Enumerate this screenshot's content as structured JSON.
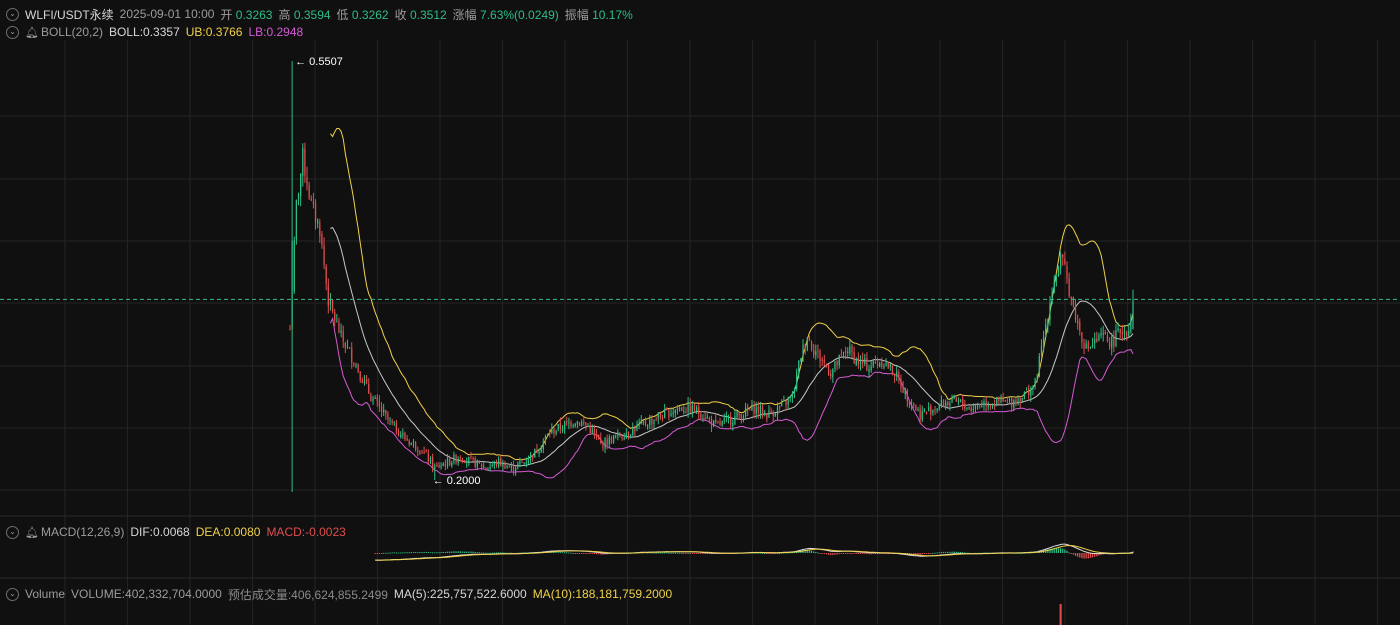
{
  "header": {
    "symbol": "WLFI/USDT永续",
    "datetime": "2025-09-01 10:00",
    "open_label": "开",
    "open": "0.3263",
    "high_label": "高",
    "high": "0.3594",
    "low_label": "低",
    "low": "0.3262",
    "close_label": "收",
    "close": "0.3512",
    "change_label": "涨幅",
    "change": "7.63%(0.0249)",
    "amplitude_label": "振幅",
    "amplitude": "10.17%"
  },
  "boll": {
    "name": "BOLL(20,2)",
    "mid_label": "BOLL:",
    "mid": "0.3357",
    "ub_label": "UB:",
    "ub": "0.3766",
    "lb_label": "LB:",
    "lb": "0.2948"
  },
  "macd": {
    "name": "MACD(12,26,9)",
    "dif_label": "DIF:",
    "dif": "0.0068",
    "dea_label": "DEA:",
    "dea": "0.0080",
    "macd_label": "MACD:",
    "macd": "-0.0023"
  },
  "volume": {
    "name": "Volume",
    "volume_label": "VOLUME:",
    "volume": "402,332,704.0000",
    "est_label": "预估成交量:",
    "est": "406,624,855.2499",
    "ma5_label": "MA(5):",
    "ma5": "225,757,522.6000",
    "ma10_label": "MA(10):",
    "ma10": "188,181,759.2000"
  },
  "annotations": {
    "high_marker": "← 0.5507",
    "low_marker": "← 0.2000"
  },
  "chart_data": {
    "type": "candlestick",
    "price_range_visible": [
      0.19,
      0.56
    ],
    "current_price": 0.3512,
    "max_high": 0.5507,
    "min_low": 0.2,
    "anchors": [
      [
        0,
        0.3263
      ],
      [
        3,
        0.43
      ],
      [
        6,
        0.47
      ],
      [
        10,
        0.43
      ],
      [
        14,
        0.41
      ],
      [
        18,
        0.35
      ],
      [
        24,
        0.32
      ],
      [
        30,
        0.3
      ],
      [
        38,
        0.27
      ],
      [
        46,
        0.25
      ],
      [
        54,
        0.235
      ],
      [
        62,
        0.225
      ],
      [
        68,
        0.21
      ],
      [
        74,
        0.215
      ],
      [
        80,
        0.22
      ],
      [
        86,
        0.215
      ],
      [
        92,
        0.21
      ],
      [
        98,
        0.215
      ],
      [
        104,
        0.21
      ],
      [
        110,
        0.215
      ],
      [
        116,
        0.225
      ],
      [
        122,
        0.24
      ],
      [
        128,
        0.245
      ],
      [
        134,
        0.25
      ],
      [
        140,
        0.245
      ],
      [
        146,
        0.23
      ],
      [
        152,
        0.235
      ],
      [
        158,
        0.24
      ],
      [
        164,
        0.245
      ],
      [
        170,
        0.25
      ],
      [
        176,
        0.255
      ],
      [
        182,
        0.26
      ],
      [
        188,
        0.26
      ],
      [
        194,
        0.255
      ],
      [
        200,
        0.245
      ],
      [
        206,
        0.25
      ],
      [
        212,
        0.255
      ],
      [
        218,
        0.26
      ],
      [
        224,
        0.255
      ],
      [
        230,
        0.26
      ],
      [
        236,
        0.27
      ],
      [
        240,
        0.305
      ],
      [
        243,
        0.32
      ],
      [
        246,
        0.31
      ],
      [
        250,
        0.3
      ],
      [
        254,
        0.29
      ],
      [
        258,
        0.3
      ],
      [
        262,
        0.31
      ],
      [
        266,
        0.3
      ],
      [
        272,
        0.295
      ],
      [
        278,
        0.3
      ],
      [
        284,
        0.29
      ],
      [
        290,
        0.27
      ],
      [
        296,
        0.255
      ],
      [
        302,
        0.26
      ],
      [
        308,
        0.265
      ],
      [
        314,
        0.265
      ],
      [
        320,
        0.26
      ],
      [
        326,
        0.265
      ],
      [
        332,
        0.265
      ],
      [
        338,
        0.265
      ],
      [
        344,
        0.27
      ],
      [
        350,
        0.28
      ],
      [
        354,
        0.32
      ],
      [
        358,
        0.36
      ],
      [
        362,
        0.385
      ],
      [
        364,
        0.375
      ],
      [
        366,
        0.36
      ],
      [
        370,
        0.33
      ],
      [
        374,
        0.31
      ],
      [
        378,
        0.315
      ],
      [
        382,
        0.32
      ],
      [
        386,
        0.315
      ],
      [
        390,
        0.325
      ],
      [
        394,
        0.3263
      ],
      [
        396,
        0.3512
      ]
    ],
    "bb_start_index": 19,
    "boll_period": 20,
    "macd_params": [
      12,
      26,
      9
    ],
    "colors": {
      "up": "#2ebd85",
      "down": "#e04e4e",
      "ub": "#f0d24a",
      "mid": "#c8c8c8",
      "lb": "#d65ad6",
      "grid": "#232323",
      "price_line": "#2ebd85"
    }
  }
}
